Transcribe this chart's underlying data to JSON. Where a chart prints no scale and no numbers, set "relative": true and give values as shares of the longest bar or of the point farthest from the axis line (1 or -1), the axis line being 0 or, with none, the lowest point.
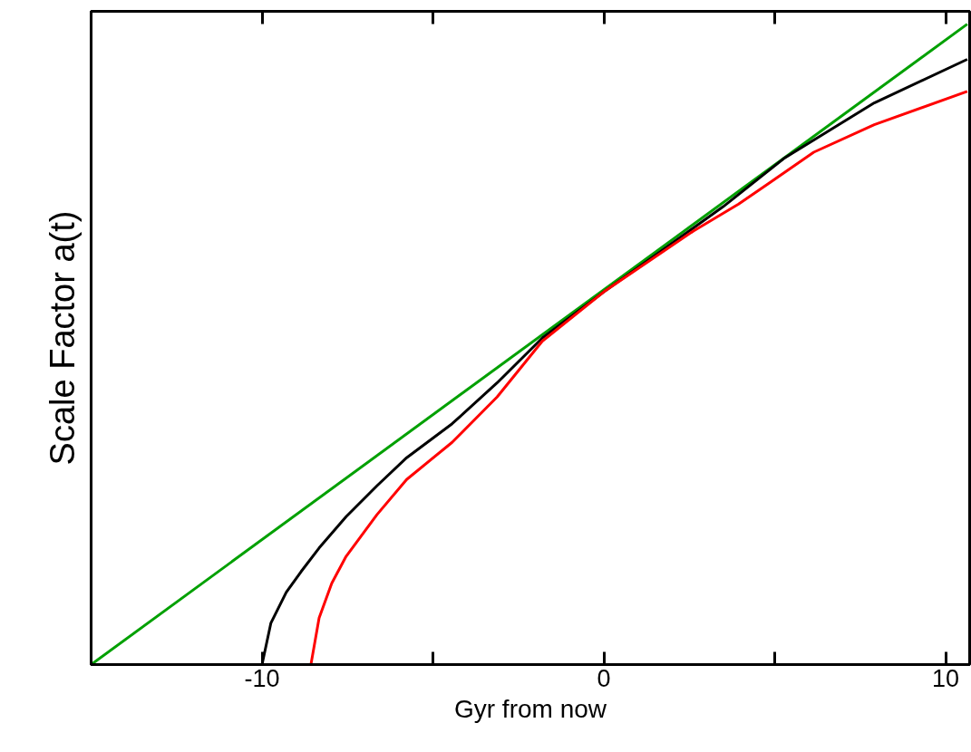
{
  "chart_data": {
    "type": "line",
    "relative": true,
    "xlabel": "Gyr from now",
    "ylabel": "Scale Factor a(t)",
    "xlim": [
      -15,
      10.7
    ],
    "xticks": [
      -10,
      {
        "value": -5,
        "label": null
      },
      0,
      {
        "value": 5,
        "label": null
      },
      10
    ],
    "marker": "none",
    "line_style": "solid",
    "series": [
      {
        "color": "#00a000",
        "x": [
          -15,
          10.63
        ],
        "values": [
          0,
          1
        ]
      },
      {
        "color": "#000000",
        "x": [
          -10.0,
          -9.74,
          -9.29,
          -8.86,
          -8.33,
          -7.54,
          -6.64,
          -5.77,
          -4.44,
          -3.12,
          -1.8,
          0,
          3.49,
          5.26,
          7.91,
          10.63
        ],
        "values": [
          0,
          0.065,
          0.113,
          0.145,
          0.182,
          0.231,
          0.279,
          0.323,
          0.376,
          0.44,
          0.51,
          0.582,
          0.715,
          0.79,
          0.877,
          0.945
        ]
      },
      {
        "color": "#ff0000",
        "x": [
          -8.57,
          -8.33,
          -7.96,
          -7.54,
          -6.64,
          -5.77,
          -4.44,
          -3.12,
          -1.8,
          0,
          2.62,
          3.94,
          4.81,
          6.14,
          7.91,
          10.63
        ],
        "values": [
          0,
          0.073,
          0.127,
          0.169,
          0.234,
          0.289,
          0.347,
          0.418,
          0.505,
          0.582,
          0.677,
          0.719,
          0.751,
          0.8,
          0.843,
          0.895
        ]
      }
    ]
  }
}
